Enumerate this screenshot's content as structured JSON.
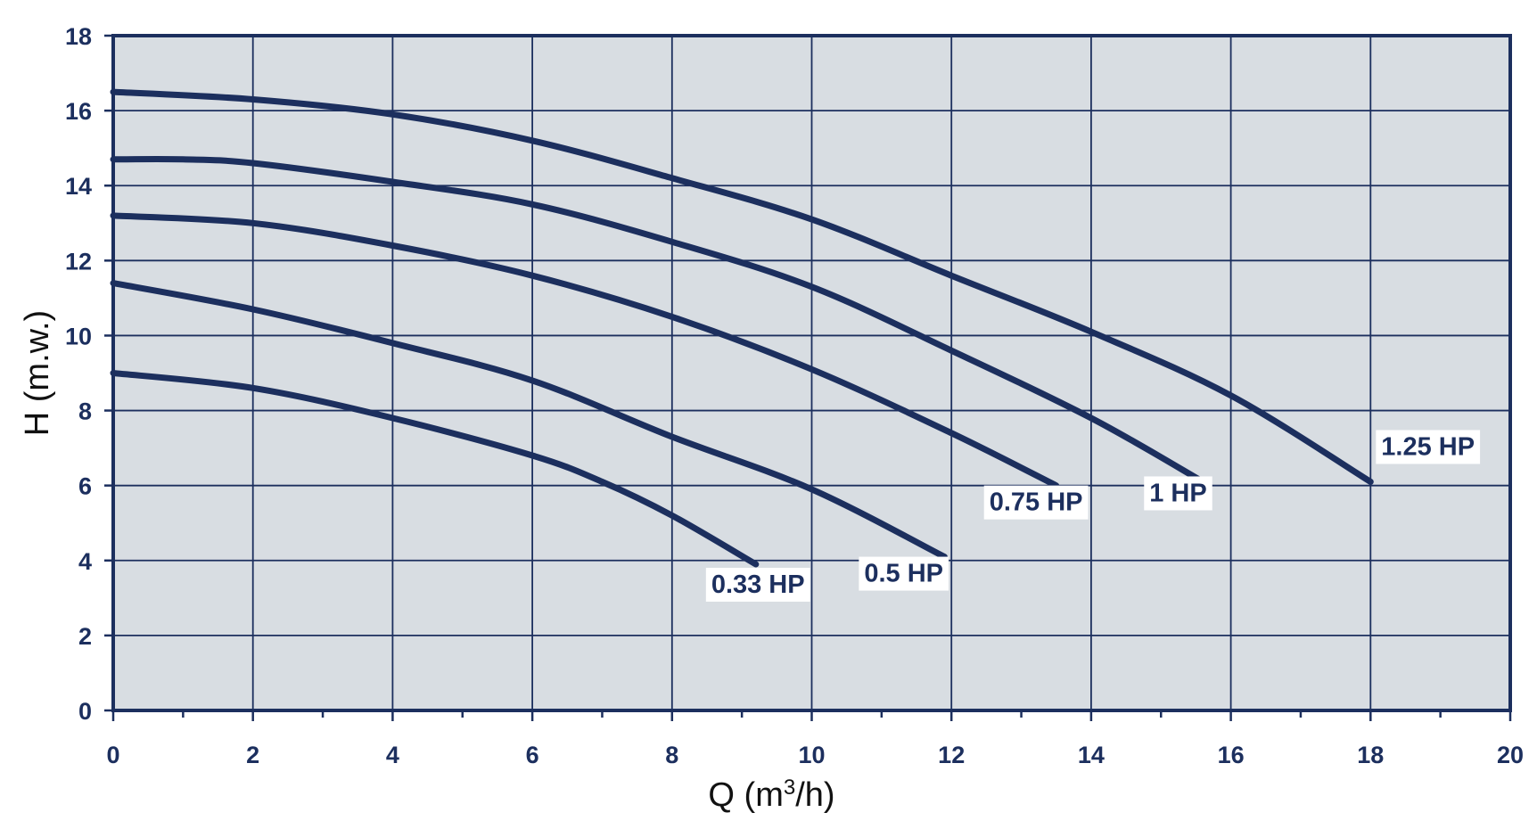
{
  "chart_data": {
    "type": "line",
    "title": "",
    "xlabel_main": "Q (m",
    "xlabel_sup": "3",
    "xlabel_tail": "/h)",
    "ylabel": "H (m.w.)",
    "xlim": [
      0,
      20
    ],
    "ylim": [
      0,
      18
    ],
    "x_ticks": [
      0,
      2,
      4,
      6,
      8,
      10,
      12,
      14,
      16,
      18,
      20
    ],
    "y_ticks": [
      0,
      2,
      4,
      6,
      8,
      10,
      12,
      14,
      16,
      18
    ],
    "x_tick_labels": [
      "0",
      "2",
      "4",
      "6",
      "8",
      "10",
      "12",
      "14",
      "16",
      "18",
      "20"
    ],
    "y_tick_labels": [
      "0",
      "2",
      "4",
      "6",
      "8",
      "10",
      "12",
      "14",
      "16",
      "18"
    ],
    "grid": true,
    "colors": {
      "plot_bg": "#d8dde2",
      "line": "#1c2f5e",
      "grid": "#1c2f5e",
      "label_bg": "#ffffff"
    },
    "series": [
      {
        "name": "0.33 HP",
        "x": [
          0,
          2,
          4,
          6,
          7,
          8,
          9.2
        ],
        "y": [
          9.0,
          8.6,
          7.8,
          6.8,
          6.1,
          5.2,
          3.9
        ]
      },
      {
        "name": "0.5 HP",
        "x": [
          0,
          2,
          4,
          6,
          8,
          10,
          11.9
        ],
        "y": [
          11.4,
          10.7,
          9.8,
          8.8,
          7.3,
          5.9,
          4.1
        ]
      },
      {
        "name": "0.75 HP",
        "x": [
          0,
          2,
          4,
          6,
          8,
          10,
          12,
          13.5
        ],
        "y": [
          13.2,
          13.0,
          12.4,
          11.6,
          10.5,
          9.1,
          7.4,
          6.0
        ]
      },
      {
        "name": "1 HP",
        "x": [
          0,
          1,
          2,
          4,
          6,
          8,
          10,
          12,
          14,
          15.6
        ],
        "y": [
          14.7,
          14.7,
          14.6,
          14.1,
          13.5,
          12.5,
          11.3,
          9.6,
          7.8,
          6.1
        ]
      },
      {
        "name": "1.25 HP",
        "x": [
          0,
          2,
          4,
          6,
          8,
          10,
          12,
          14,
          16,
          18
        ],
        "y": [
          16.5,
          16.3,
          15.9,
          15.2,
          14.2,
          13.1,
          11.6,
          10.1,
          8.4,
          6.1
        ]
      }
    ]
  }
}
